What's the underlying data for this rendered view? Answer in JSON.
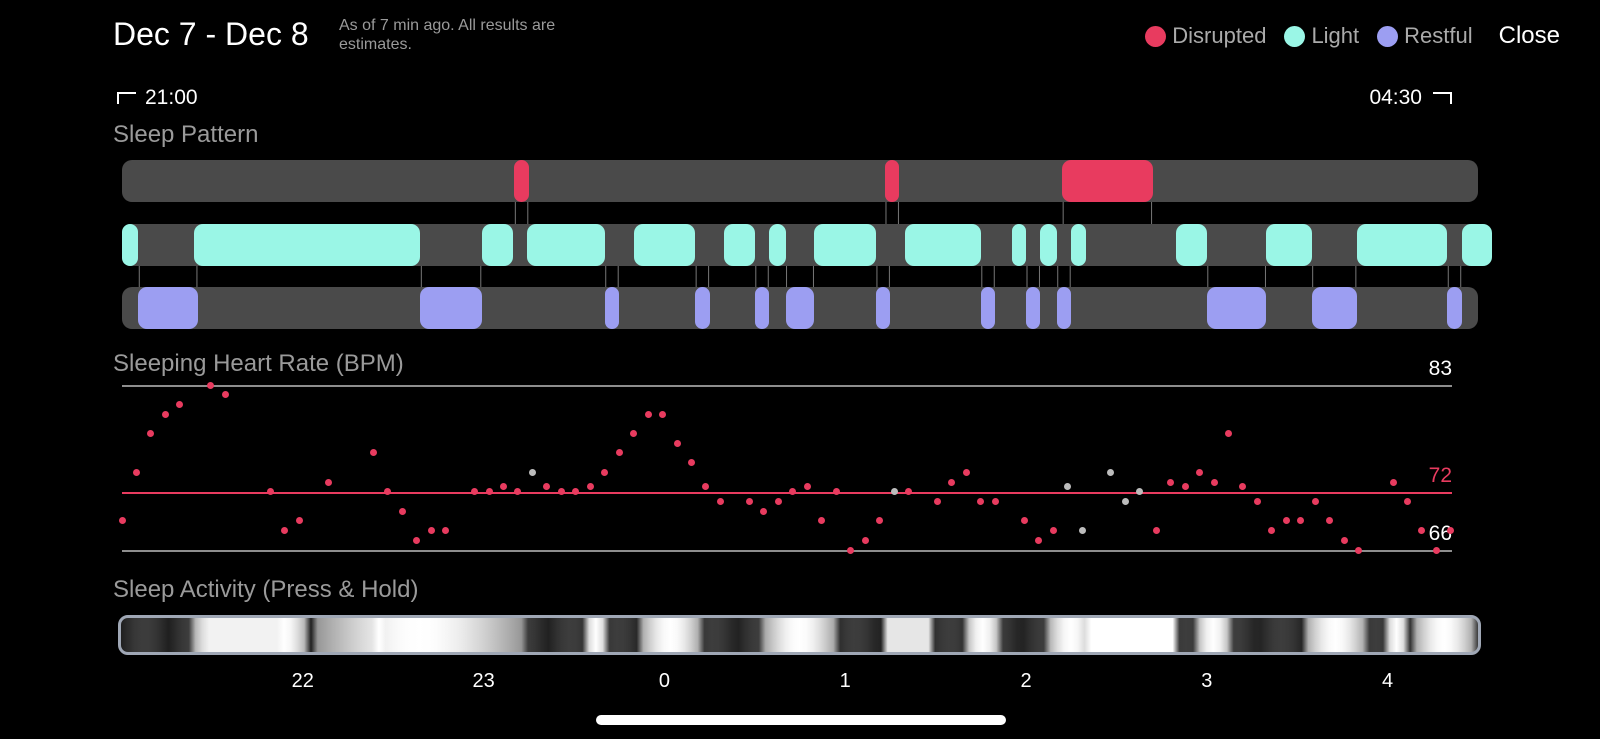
{
  "header": {
    "date_range": "Dec 7 - Dec 8",
    "note": "As of 7 min ago. All results are estimates.",
    "close_label": "Close"
  },
  "legend": [
    {
      "label": "Disrupted",
      "color": "#e83b5f"
    },
    {
      "label": "Light",
      "color": "#9af6e6"
    },
    {
      "label": "Restful",
      "color": "#9c9ef2"
    }
  ],
  "range": {
    "start": "21:00",
    "end": "04:30"
  },
  "sections": {
    "sleep_pattern": "Sleep Pattern",
    "heart_rate": "Sleeping Heart Rate (BPM)",
    "activity": "Sleep Activity (Press & Hold)"
  },
  "colors": {
    "disrupted": "#e83b5f",
    "light": "#9af6e6",
    "restful": "#9c9ef2",
    "gray_dot": "#bcbcbc",
    "track": "#4a4a4a"
  },
  "chart_data": {
    "type": "scatter",
    "title": "Sleeping Heart Rate (BPM)",
    "time_axis_hours": [
      21.0,
      28.5
    ],
    "ylim": [
      66,
      83
    ],
    "reference_lines": [
      83,
      72,
      66
    ],
    "reference_labels": [
      "83",
      "72",
      "66"
    ],
    "x_ticks": [
      {
        "value": 22,
        "label": "22"
      },
      {
        "value": 23,
        "label": "23"
      },
      {
        "value": 24,
        "label": "0"
      },
      {
        "value": 25,
        "label": "1"
      },
      {
        "value": 26,
        "label": "2"
      },
      {
        "value": 27,
        "label": "3"
      },
      {
        "value": 28,
        "label": "4"
      }
    ],
    "sleep_pattern": {
      "disrupted": [
        [
          23.17,
          23.25
        ],
        [
          25.22,
          25.3
        ],
        [
          26.2,
          26.7
        ]
      ],
      "light": [
        [
          21.0,
          21.09
        ],
        [
          21.4,
          22.65
        ],
        [
          22.99,
          23.16
        ],
        [
          23.24,
          23.67
        ],
        [
          23.83,
          24.17
        ],
        [
          24.33,
          24.5
        ],
        [
          24.58,
          24.67
        ],
        [
          24.83,
          25.17
        ],
        [
          25.33,
          25.75
        ],
        [
          25.92,
          26.0
        ],
        [
          26.08,
          26.17
        ],
        [
          26.25,
          26.33
        ],
        [
          26.83,
          27.0
        ],
        [
          27.33,
          27.58
        ],
        [
          27.83,
          28.33
        ],
        [
          28.41,
          28.58
        ]
      ],
      "restful": [
        [
          21.09,
          21.42
        ],
        [
          22.65,
          22.99
        ],
        [
          23.67,
          23.75
        ],
        [
          24.17,
          24.25
        ],
        [
          24.5,
          24.58
        ],
        [
          24.67,
          24.83
        ],
        [
          25.17,
          25.25
        ],
        [
          25.75,
          25.83
        ],
        [
          26.0,
          26.08
        ],
        [
          26.17,
          26.25
        ],
        [
          27.0,
          27.33
        ],
        [
          27.58,
          27.83
        ],
        [
          28.33,
          28.41
        ]
      ]
    },
    "series": [
      {
        "name": "",
        "color": "#e83b5f",
        "points": [
          [
            21.0,
            69
          ],
          [
            21.08,
            74
          ],
          [
            21.16,
            78
          ],
          [
            21.24,
            80
          ],
          [
            21.32,
            81
          ],
          [
            21.49,
            83
          ],
          [
            21.57,
            82
          ],
          [
            21.82,
            72
          ],
          [
            21.9,
            68
          ],
          [
            21.98,
            69
          ],
          [
            22.14,
            73
          ],
          [
            22.39,
            76
          ],
          [
            22.47,
            72
          ],
          [
            22.55,
            70
          ],
          [
            22.63,
            67
          ],
          [
            22.71,
            68
          ],
          [
            22.79,
            68
          ],
          [
            22.95,
            72
          ],
          [
            23.03,
            72
          ],
          [
            23.11,
            72.5
          ],
          [
            23.19,
            72
          ],
          [
            23.35,
            72.5
          ],
          [
            23.43,
            72
          ],
          [
            23.51,
            72
          ],
          [
            23.59,
            72.5
          ],
          [
            23.67,
            74
          ],
          [
            23.75,
            76
          ],
          [
            23.83,
            78
          ],
          [
            23.91,
            80
          ],
          [
            23.99,
            80
          ],
          [
            24.07,
            77
          ],
          [
            24.15,
            75
          ],
          [
            24.23,
            72.5
          ],
          [
            24.31,
            71
          ],
          [
            24.47,
            71
          ],
          [
            24.55,
            70
          ],
          [
            24.63,
            71
          ],
          [
            24.71,
            72
          ],
          [
            24.79,
            72.5
          ],
          [
            24.87,
            69
          ],
          [
            24.95,
            72
          ],
          [
            25.03,
            66
          ],
          [
            25.11,
            67
          ],
          [
            25.19,
            69
          ],
          [
            25.35,
            72
          ],
          [
            25.51,
            71
          ],
          [
            25.59,
            73
          ],
          [
            25.67,
            74
          ],
          [
            25.75,
            71
          ],
          [
            25.83,
            71
          ],
          [
            25.99,
            69
          ],
          [
            26.07,
            67
          ],
          [
            26.15,
            68
          ],
          [
            26.72,
            68
          ],
          [
            26.8,
            73
          ],
          [
            26.88,
            72.5
          ],
          [
            26.96,
            74
          ],
          [
            27.04,
            73
          ],
          [
            27.12,
            78
          ],
          [
            27.2,
            72.5
          ],
          [
            27.28,
            71
          ],
          [
            27.36,
            68
          ],
          [
            27.44,
            69
          ],
          [
            27.52,
            69
          ],
          [
            27.6,
            71
          ],
          [
            27.68,
            69
          ],
          [
            27.76,
            67
          ],
          [
            27.84,
            66
          ],
          [
            28.03,
            73
          ],
          [
            28.11,
            71
          ],
          [
            28.19,
            68
          ],
          [
            28.27,
            66
          ],
          [
            28.35,
            68
          ]
        ]
      },
      {
        "name": "",
        "color": "#bcbcbc",
        "points": [
          [
            23.27,
            74
          ],
          [
            25.27,
            72
          ],
          [
            26.23,
            72.5
          ],
          [
            26.31,
            68
          ],
          [
            26.47,
            74
          ],
          [
            26.55,
            71
          ],
          [
            26.63,
            72
          ]
        ]
      }
    ]
  },
  "activity_ticks": [
    "22",
    "23",
    "0",
    "1",
    "2",
    "3",
    "4"
  ]
}
